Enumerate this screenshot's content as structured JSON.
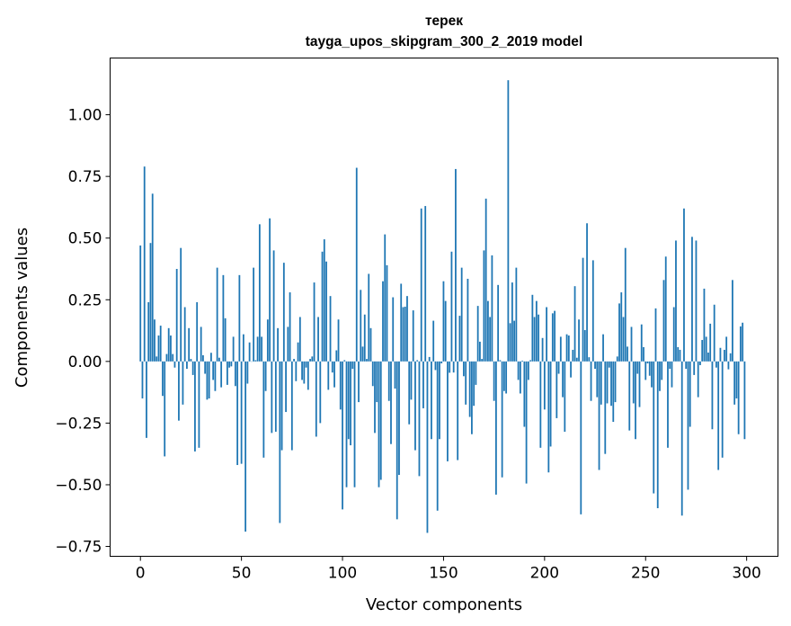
{
  "chart_data": {
    "type": "bar",
    "title": "терек",
    "subtitle": "tayga_upos_skipgram_300_2_2019 model",
    "xlabel": "Vector components",
    "ylabel": "Components values",
    "xlim": [
      -15,
      315.5
    ],
    "ylim": [
      -0.79,
      1.23
    ],
    "xticks": [
      0,
      50,
      100,
      150,
      200,
      250,
      300
    ],
    "xtick_labels": [
      "0",
      "50",
      "100",
      "150",
      "200",
      "250",
      "300"
    ],
    "yticks": [
      -0.75,
      -0.5,
      -0.25,
      0,
      0.25,
      0.5,
      0.75,
      1.0
    ],
    "ytick_labels": [
      "−0.75",
      "−0.50",
      "−0.25",
      "0.00",
      "0.25",
      "0.50",
      "0.75",
      "1.00"
    ],
    "grid": false,
    "color": "#1f77b4",
    "values": [
      0.47,
      -0.15,
      0.79,
      -0.31,
      0.24,
      0.48,
      0.68,
      0.17,
      0.02,
      0.105,
      0.145,
      -0.14,
      -0.385,
      0.03,
      0.135,
      0.105,
      0.03,
      -0.025,
      0.375,
      -0.24,
      0.46,
      -0.175,
      0.22,
      -0.03,
      0.135,
      0.01,
      -0.055,
      -0.365,
      0.24,
      -0.35,
      0.14,
      0.025,
      -0.05,
      -0.155,
      -0.15,
      0.035,
      -0.075,
      -0.12,
      0.38,
      0.015,
      -0.105,
      0.35,
      0.175,
      -0.095,
      -0.025,
      -0.02,
      0.1,
      -0.1,
      -0.42,
      0.35,
      -0.415,
      0.11,
      -0.69,
      -0.09,
      0.077,
      0.0,
      0.38,
      0.005,
      0.1,
      0.556,
      0.1,
      -0.39,
      -0.12,
      0.17,
      0.58,
      -0.29,
      0.45,
      -0.285,
      0.135,
      -0.655,
      -0.36,
      0.4,
      -0.205,
      0.14,
      0.28,
      -0.36,
      0.01,
      -0.08,
      0.077,
      0.18,
      -0.075,
      -0.09,
      -0.025,
      -0.115,
      0.01,
      0.02,
      0.32,
      -0.305,
      0.18,
      -0.25,
      0.445,
      0.495,
      0.405,
      -0.115,
      0.265,
      -0.045,
      -0.105,
      0.045,
      0.17,
      -0.195,
      -0.6,
      0.005,
      -0.51,
      -0.315,
      -0.34,
      -0.03,
      -0.51,
      0.785,
      -0.165,
      0.29,
      0.06,
      0.19,
      0.01,
      0.355,
      0.135,
      -0.1,
      -0.29,
      -0.165,
      -0.51,
      -0.48,
      0.325,
      0.515,
      0.39,
      -0.16,
      -0.335,
      0.26,
      -0.11,
      -0.64,
      -0.46,
      0.315,
      0.22,
      0.222,
      0.265,
      -0.255,
      -0.155,
      0.207,
      -0.36,
      0.005,
      -0.465,
      0.62,
      -0.19,
      0.63,
      -0.695,
      0.018,
      -0.315,
      0.165,
      -0.035,
      -0.605,
      -0.315,
      -0.008,
      0.325,
      0.245,
      -0.405,
      -0.046,
      0.445,
      -0.045,
      0.78,
      -0.4,
      0.185,
      0.38,
      -0.06,
      -0.175,
      0.335,
      -0.225,
      -0.295,
      -0.18,
      -0.095,
      0.225,
      0.08,
      0.01,
      0.45,
      0.66,
      0.245,
      0.18,
      0.43,
      -0.16,
      -0.54,
      0.31,
      0.005,
      -0.47,
      -0.12,
      -0.13,
      1.14,
      0.155,
      0.32,
      0.165,
      0.38,
      -0.075,
      -0.13,
      0.003,
      -0.265,
      -0.495,
      -0.075,
      0.005,
      0.27,
      0.18,
      0.245,
      0.19,
      -0.35,
      0.095,
      -0.195,
      0.22,
      -0.45,
      -0.345,
      0.195,
      0.205,
      -0.23,
      -0.05,
      0.1,
      -0.145,
      -0.285,
      0.11,
      0.105,
      -0.065,
      0.047,
      0.305,
      0.015,
      0.17,
      -0.62,
      0.42,
      0.127,
      0.56,
      0.017,
      -0.16,
      0.41,
      -0.03,
      -0.145,
      -0.44,
      -0.175,
      0.11,
      -0.375,
      -0.17,
      -0.025,
      -0.18,
      -0.245,
      -0.165,
      0.02,
      0.235,
      0.28,
      0.18,
      0.46,
      0.06,
      -0.28,
      0.14,
      -0.17,
      -0.315,
      -0.05,
      -0.185,
      0.15,
      0.058,
      -0.075,
      -0.008,
      -0.058,
      -0.105,
      -0.535,
      0.215,
      -0.595,
      -0.12,
      -0.075,
      0.33,
      0.425,
      -0.35,
      -0.03,
      -0.105,
      0.22,
      0.49,
      0.058,
      0.047,
      -0.625,
      0.62,
      -0.03,
      -0.52,
      -0.265,
      0.505,
      -0.055,
      0.49,
      -0.145,
      -0.015,
      0.087,
      0.295,
      0.1,
      0.036,
      0.153,
      -0.275,
      0.23,
      -0.025,
      -0.44,
      0.055,
      -0.39,
      0.047,
      0.1,
      -0.032,
      0.033,
      0.33,
      -0.175,
      -0.15,
      -0.295,
      0.142,
      0.157,
      -0.315
    ]
  }
}
